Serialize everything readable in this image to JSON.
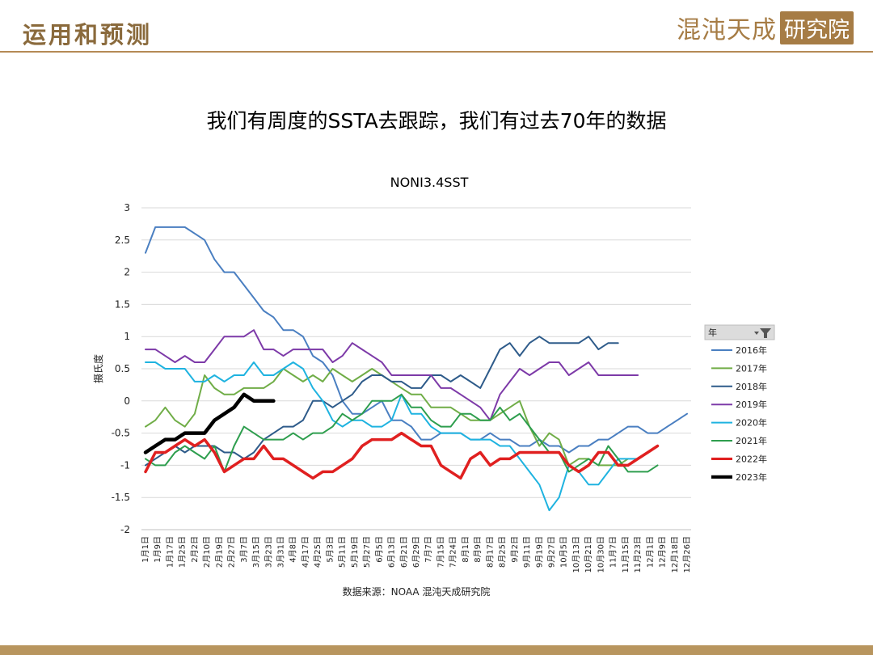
{
  "header": {
    "title": "运用和预测",
    "brand_text": "混沌天成",
    "brand_box": "研究院"
  },
  "subtitle": "我们有周度的SSTA去跟踪，我们有过去70年的数据",
  "colors": {
    "accent": "#b58a55",
    "footer": "#b8955e"
  },
  "chart_data": {
    "type": "line",
    "title": "NONI3.4SST",
    "ylabel": "摄氏度",
    "xlabel": "",
    "ylim": [
      -2,
      3
    ],
    "yticks": [
      3,
      2.5,
      2,
      1.5,
      1,
      0.5,
      0,
      -0.5,
      -1,
      -1.5,
      -2
    ],
    "grid": true,
    "legend_position": "right",
    "legend_header": "年",
    "source": "数据来源：NOAA 混沌天成研究院",
    "tick_labels": [
      "1月1日",
      "1月9日",
      "1月17日",
      "1月25日",
      "2月2日",
      "2月10日",
      "2月19日",
      "2月27日",
      "3月7日",
      "3月15日",
      "3月23日",
      "3月31日",
      "4月8日",
      "4月17日",
      "4月25日",
      "5月3日",
      "5月11日",
      "5月19日",
      "5月27日",
      "6月5日",
      "6月13日",
      "6月21日",
      "6月29日",
      "7月7日",
      "7月15日",
      "7月24日",
      "8月1日",
      "8月9日",
      "8月17日",
      "8月25日",
      "9月2日",
      "9月11日",
      "9月19日",
      "9月27日",
      "10月5日",
      "10月13日",
      "10月21日",
      "10月30日",
      "11月7日",
      "11月15日",
      "11月23日",
      "12月1日",
      "12月9日",
      "12月18日",
      "12月26日"
    ],
    "series": [
      {
        "name": "2016年",
        "color": "#4a7fc1",
        "width": 2,
        "values": [
          2.3,
          2.7,
          2.7,
          2.7,
          2.7,
          2.6,
          2.5,
          2.2,
          2.0,
          2.0,
          1.8,
          1.6,
          1.4,
          1.3,
          1.1,
          1.1,
          1.0,
          0.7,
          0.6,
          0.4,
          0.0,
          -0.2,
          -0.2,
          -0.1,
          0.0,
          -0.3,
          -0.3,
          -0.4,
          -0.6,
          -0.6,
          -0.5,
          -0.5,
          -0.5,
          -0.6,
          -0.6,
          -0.5,
          -0.6,
          -0.6,
          -0.7,
          -0.7,
          -0.6,
          -0.7,
          -0.7,
          -0.8,
          -0.7,
          -0.7,
          -0.6,
          -0.6,
          -0.5,
          -0.4,
          -0.4,
          -0.5,
          -0.5,
          -0.4,
          -0.3,
          -0.2
        ]
      },
      {
        "name": "2017年",
        "color": "#70ad47",
        "width": 2,
        "values": [
          -0.4,
          -0.3,
          -0.1,
          -0.3,
          -0.4,
          -0.2,
          0.4,
          0.2,
          0.1,
          0.1,
          0.2,
          0.2,
          0.2,
          0.3,
          0.5,
          0.4,
          0.3,
          0.4,
          0.3,
          0.5,
          0.4,
          0.3,
          0.4,
          0.5,
          0.4,
          0.3,
          0.2,
          0.1,
          0.1,
          -0.1,
          -0.1,
          -0.1,
          -0.2,
          -0.3,
          -0.3,
          -0.3,
          -0.2,
          -0.1,
          0.0,
          -0.4,
          -0.7,
          -0.5,
          -0.6,
          -1.0,
          -0.9,
          -0.9,
          -1.0,
          -1.0,
          -1.0,
          -0.9
        ]
      },
      {
        "name": "2018年",
        "color": "#2e5b8a",
        "width": 2,
        "values": [
          -1.0,
          -0.9,
          -0.8,
          -0.7,
          -0.8,
          -0.7,
          -0.7,
          -0.7,
          -0.8,
          -0.8,
          -0.9,
          -0.8,
          -0.6,
          -0.5,
          -0.4,
          -0.4,
          -0.3,
          0.0,
          0.0,
          -0.1,
          0.0,
          0.1,
          0.3,
          0.4,
          0.4,
          0.3,
          0.3,
          0.2,
          0.2,
          0.4,
          0.4,
          0.3,
          0.4,
          0.3,
          0.2,
          0.5,
          0.8,
          0.9,
          0.7,
          0.9,
          1.0,
          0.9,
          0.9,
          0.9,
          0.9,
          1.0,
          0.8,
          0.9,
          0.9
        ]
      },
      {
        "name": "2019年",
        "color": "#7d3aa8",
        "width": 2,
        "values": [
          0.8,
          0.8,
          0.7,
          0.6,
          0.7,
          0.6,
          0.6,
          0.8,
          1.0,
          1.0,
          1.0,
          1.1,
          0.8,
          0.8,
          0.7,
          0.8,
          0.8,
          0.8,
          0.8,
          0.6,
          0.7,
          0.9,
          0.8,
          0.7,
          0.6,
          0.4,
          0.4,
          0.4,
          0.4,
          0.4,
          0.2,
          0.2,
          0.1,
          0.0,
          -0.1,
          -0.3,
          0.1,
          0.3,
          0.5,
          0.4,
          0.5,
          0.6,
          0.6,
          0.4,
          0.5,
          0.6,
          0.4,
          0.4,
          0.4,
          0.4,
          0.4
        ]
      },
      {
        "name": "2020年",
        "color": "#1fb3e0",
        "width": 2,
        "values": [
          0.6,
          0.6,
          0.5,
          0.5,
          0.5,
          0.3,
          0.3,
          0.4,
          0.3,
          0.4,
          0.4,
          0.6,
          0.4,
          0.4,
          0.5,
          0.6,
          0.5,
          0.2,
          0.0,
          -0.3,
          -0.4,
          -0.3,
          -0.3,
          -0.4,
          -0.4,
          -0.3,
          0.1,
          -0.2,
          -0.2,
          -0.4,
          -0.5,
          -0.5,
          -0.5,
          -0.6,
          -0.6,
          -0.6,
          -0.7,
          -0.7,
          -0.9,
          -1.1,
          -1.3,
          -1.7,
          -1.5,
          -1.0,
          -1.1,
          -1.3,
          -1.3,
          -1.1,
          -0.9,
          -0.9,
          -0.9
        ]
      },
      {
        "name": "2021年",
        "color": "#2e9e4e",
        "width": 2,
        "values": [
          -0.9,
          -1.0,
          -1.0,
          -0.8,
          -0.7,
          -0.8,
          -0.9,
          -0.7,
          -1.1,
          -0.7,
          -0.4,
          -0.5,
          -0.6,
          -0.6,
          -0.6,
          -0.5,
          -0.6,
          -0.5,
          -0.5,
          -0.4,
          -0.2,
          -0.3,
          -0.2,
          0.0,
          0.0,
          0.0,
          0.1,
          -0.1,
          -0.1,
          -0.3,
          -0.4,
          -0.4,
          -0.2,
          -0.2,
          -0.3,
          -0.3,
          -0.1,
          -0.3,
          -0.2,
          -0.4,
          -0.6,
          -0.8,
          -0.8,
          -1.1,
          -1.0,
          -0.9,
          -1.0,
          -0.7,
          -0.9,
          -1.1,
          -1.1,
          -1.1,
          -1.0
        ]
      },
      {
        "name": "2022年",
        "color": "#e02020",
        "width": 3.5,
        "values": [
          -1.1,
          -0.8,
          -0.8,
          -0.7,
          -0.6,
          -0.7,
          -0.6,
          -0.8,
          -1.1,
          -1.0,
          -0.9,
          -0.9,
          -0.7,
          -0.9,
          -0.9,
          -1.0,
          -1.1,
          -1.2,
          -1.1,
          -1.1,
          -1.0,
          -0.9,
          -0.7,
          -0.6,
          -0.6,
          -0.6,
          -0.5,
          -0.6,
          -0.7,
          -0.7,
          -1.0,
          -1.1,
          -1.2,
          -0.9,
          -0.8,
          -1.0,
          -0.9,
          -0.9,
          -0.8,
          -0.8,
          -0.8,
          -0.8,
          -0.8,
          -1.0,
          -1.1,
          -1.0,
          -0.8,
          -0.8,
          -1.0,
          -1.0,
          -0.9,
          -0.8,
          -0.7
        ]
      },
      {
        "name": "2023年",
        "color": "#000000",
        "width": 4.5,
        "values": [
          -0.8,
          -0.7,
          -0.6,
          -0.6,
          -0.5,
          -0.5,
          -0.5,
          -0.3,
          -0.2,
          -0.1,
          0.1,
          0.0,
          0.0,
          0.0
        ]
      }
    ]
  }
}
